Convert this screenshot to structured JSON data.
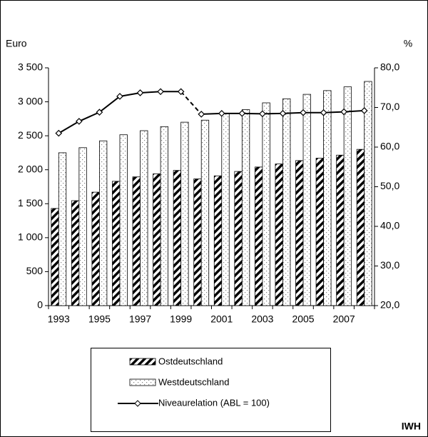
{
  "chart_data": {
    "type": "bar",
    "y_label": "Euro",
    "y2_label": "%",
    "categories": [
      "1993",
      null,
      "1995",
      null,
      "1997",
      null,
      "1999",
      null,
      "2001",
      null,
      "2003",
      null,
      "2005",
      null,
      "2007",
      null
    ],
    "series": [
      {
        "name": "Ostdeutschland",
        "type": "bar",
        "color": "#000000",
        "pattern": "diagonal",
        "values": [
          1430,
          1545,
          1670,
          1830,
          1895,
          1940,
          1990,
          1865,
          1910,
          1975,
          2040,
          2085,
          2135,
          2170,
          2215,
          2300
        ]
      },
      {
        "name": "Westdeutschland",
        "type": "bar",
        "color": "#808080",
        "pattern": "dots",
        "values": [
          2250,
          2325,
          2425,
          2515,
          2575,
          2635,
          2700,
          2730,
          2830,
          2885,
          2985,
          3045,
          3110,
          3165,
          3220,
          3300
        ]
      },
      {
        "name": "Niveaurelation (ABL = 100)",
        "type": "line",
        "axis": "y2",
        "color": "#000000",
        "marker": "diamond",
        "values": [
          63.5,
          66.5,
          68.8,
          72.8,
          73.7,
          74.0,
          74.0,
          68.3,
          68.5,
          68.5,
          68.4,
          68.5,
          68.7,
          68.7,
          68.9,
          69.2
        ]
      }
    ],
    "ylim": [
      0,
      3500
    ],
    "yticks": [
      0,
      {
        "value": 500,
        "label": "500"
      },
      {
        "value": 1000,
        "label": "1 000"
      },
      {
        "value": 1500,
        "label": "1 500"
      },
      {
        "value": 2000,
        "label": "2 000"
      },
      {
        "value": 2500,
        "label": "2 500"
      },
      {
        "value": 3000,
        "label": "3 000"
      },
      {
        "value": 3500,
        "label": "3 500"
      }
    ],
    "y2lim": [
      20,
      80
    ],
    "y2ticks": [
      {
        "value": 20,
        "label": "20,0"
      },
      {
        "value": 30,
        "label": "30,0"
      },
      {
        "value": 40,
        "label": "40,0"
      },
      {
        "value": 50,
        "label": "50,0"
      },
      {
        "value": 60,
        "label": "60,0"
      },
      {
        "value": 70,
        "label": "70,0"
      },
      {
        "value": 80,
        "label": "80,0"
      }
    ],
    "grid": false,
    "legend": "bottom",
    "source": "IWH"
  }
}
